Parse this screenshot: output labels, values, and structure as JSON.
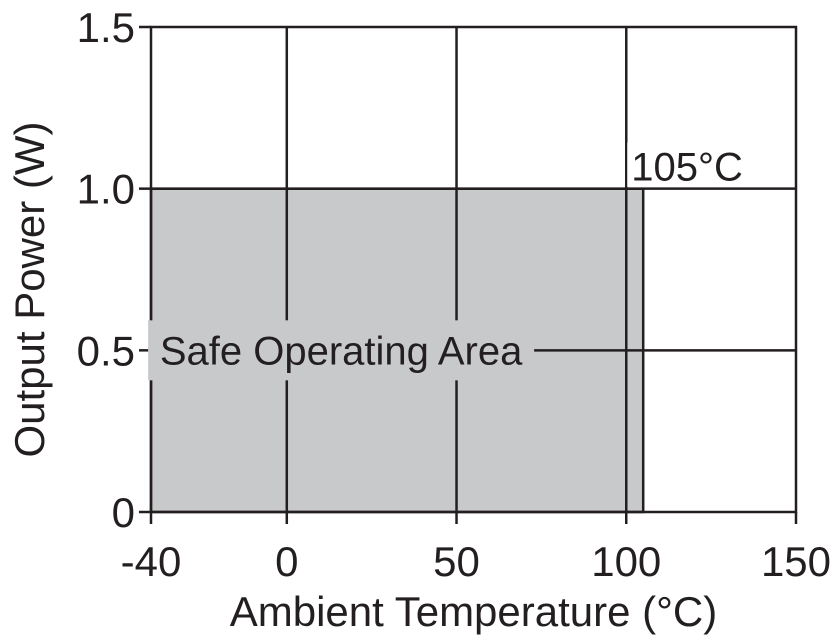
{
  "chart_data": {
    "type": "area",
    "title": "",
    "xlabel": "Ambient Temperature (°C)",
    "ylabel": "Output Power (W)",
    "xlim": [
      -40,
      150
    ],
    "ylim": [
      0,
      1.5
    ],
    "x_ticks": [
      -40,
      0,
      50,
      100,
      150
    ],
    "x_tick_labels": [
      "-40",
      "0",
      "50",
      "100",
      "150"
    ],
    "y_ticks": [
      0,
      0.5,
      1.0,
      1.5
    ],
    "y_tick_labels": [
      "0",
      "0.5",
      "1.0",
      "1.5"
    ],
    "grid": true,
    "legend": "none",
    "series": [
      {
        "x": [
          -40,
          105,
          105
        ],
        "y": [
          1.0,
          1.0,
          0
        ]
      }
    ],
    "fill_color": "#c8c9cb",
    "line_color": "#231f20",
    "annotations": [
      {
        "text": "Safe Operating Area",
        "x": 16,
        "y": 0.5
      },
      {
        "text": "105°C",
        "x": 105,
        "y": 1.0
      }
    ]
  }
}
